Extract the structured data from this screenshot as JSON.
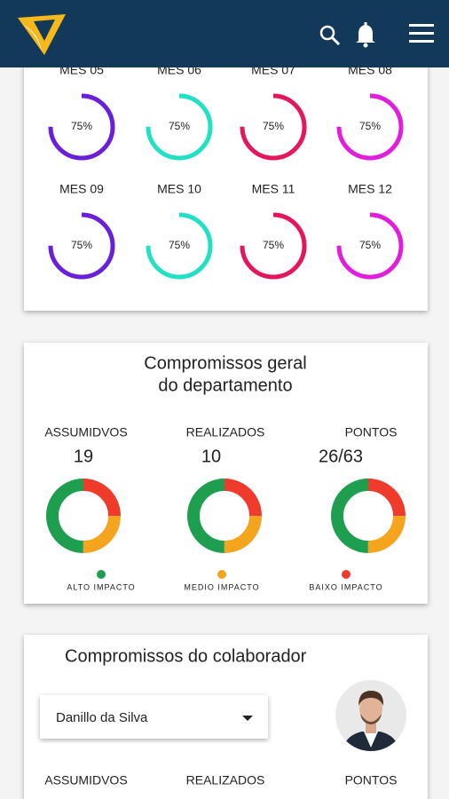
{
  "monthly_progress": [
    {
      "label": "MES 05",
      "value": 75,
      "value_label": "75%",
      "color": "#6a1fd8"
    },
    {
      "label": "MES 06",
      "value": 75,
      "value_label": "75%",
      "color": "#22e0c4"
    },
    {
      "label": "MES 07",
      "value": 75,
      "value_label": "75%",
      "color": "#e5175c"
    },
    {
      "label": "MES 08",
      "value": 75,
      "value_label": "75%",
      "color": "#e01edc"
    },
    {
      "label": "MES 09",
      "value": 75,
      "value_label": "75%",
      "color": "#6a1fd8"
    },
    {
      "label": "MES 10",
      "value": 75,
      "value_label": "75%",
      "color": "#22e0c4"
    },
    {
      "label": "MES 11",
      "value": 75,
      "value_label": "75%",
      "color": "#e5175c"
    },
    {
      "label": "MES 12",
      "value": 75,
      "value_label": "75%",
      "color": "#e01edc"
    }
  ],
  "department": {
    "title_lines": [
      "Compromissos geral",
      "do departamento"
    ],
    "stats": [
      {
        "label": "ASSUMIDVOS",
        "value": "19",
        "segments": [
          50,
          25,
          25
        ]
      },
      {
        "label": "REALIZADOS",
        "value": "10",
        "segments": [
          50,
          25,
          25
        ]
      },
      {
        "label": "PONTOS",
        "value": "26/63",
        "segments": [
          50,
          25,
          25
        ]
      }
    ],
    "legend": [
      {
        "label": "ALTO IMPACTO",
        "color": "#1e9e4f"
      },
      {
        "label": "MEDIO IMPACTO",
        "color": "#f5a41e"
      },
      {
        "label": "BAIXO IMPACTO",
        "color": "#ef3b2c"
      }
    ]
  },
  "collaborator": {
    "title": "Compromissos do colaborador",
    "selected": "Danillo da Silva",
    "stats_labels": [
      "ASSUMIDVOS",
      "REALIZADOS",
      "PONTOS"
    ]
  }
}
